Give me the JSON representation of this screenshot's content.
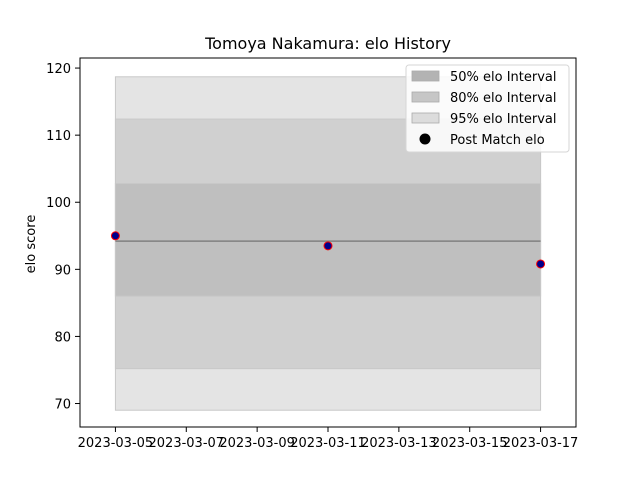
{
  "chart_data": {
    "type": "line",
    "title": "Tomoya Nakamura: elo History",
    "xlabel": "",
    "ylabel": "elo score",
    "ylim": [
      66.5,
      121.5
    ],
    "xlim": [
      "2023-03-04",
      "2023-03-18"
    ],
    "x_ticks": [
      "2023-03-05",
      "2023-03-07",
      "2023-03-09",
      "2023-03-11",
      "2023-03-13",
      "2023-03-15",
      "2023-03-17"
    ],
    "y_ticks": [
      70,
      80,
      90,
      100,
      110,
      120
    ],
    "band_x": [
      "2023-03-05",
      "2023-03-17"
    ],
    "bands": [
      {
        "name": "95% elo Interval",
        "low": 69.0,
        "high": 118.7,
        "color": "#e4e4e4"
      },
      {
        "name": "80% elo Interval",
        "low": 75.2,
        "high": 112.4,
        "color": "#d0d0d0"
      },
      {
        "name": "50% elo Interval",
        "low": 86.0,
        "high": 102.8,
        "color": "#bfbfbf"
      }
    ],
    "mean_line": {
      "value": 94.2,
      "color": "#808080"
    },
    "series": [
      {
        "name": "Post Match elo",
        "x": [
          "2023-03-05",
          "2023-03-11",
          "2023-03-17"
        ],
        "y": [
          95.0,
          93.5,
          90.8
        ],
        "color": "#00008b",
        "edge_color": "#ff0000"
      }
    ],
    "legend": {
      "position": "top-right",
      "entries": [
        {
          "label": "50% elo Interval",
          "kind": "patch",
          "color": "#b3b3b3"
        },
        {
          "label": "80% elo Interval",
          "kind": "patch",
          "color": "#c6c6c6"
        },
        {
          "label": "95% elo Interval",
          "kind": "patch",
          "color": "#dcdcdc"
        },
        {
          "label": "Post Match elo",
          "kind": "marker",
          "color": "#000000"
        }
      ]
    },
    "grid": false
  }
}
